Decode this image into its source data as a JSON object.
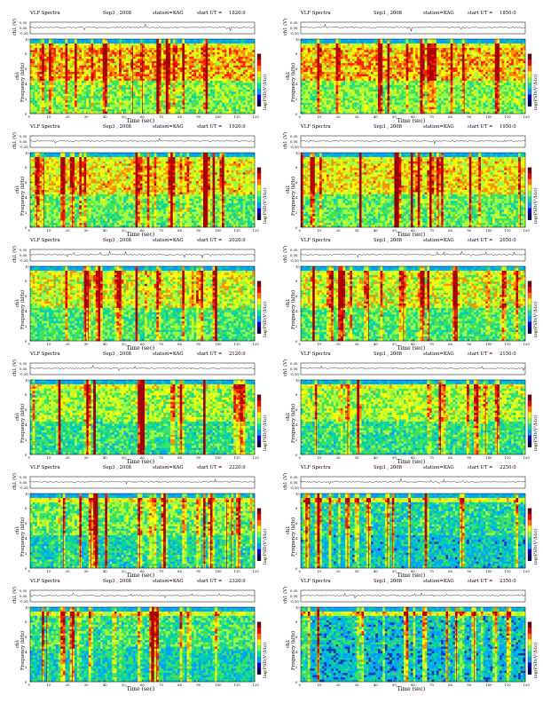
{
  "figure": {
    "labels": {
      "ch1_waveform": "ch1 (V)",
      "channel": "ch1",
      "frequency": "Frequency (kHz)",
      "colorbar": "log(PSD(V²/Hz))",
      "time": "Time (sec)"
    },
    "header_text": {
      "title": "VLF Spectra",
      "date": "Sep3 , 2008",
      "station": "station=KAG",
      "start": "start UT ="
    },
    "colorbar_scale": {
      "colors": [
        "#7a0000",
        "#ff0000",
        "#ff8000",
        "#ffff00",
        "#80ff40",
        "#00e0a0",
        "#00a0ff",
        "#0000c0",
        "#000050"
      ]
    }
  },
  "chart_data": [
    {
      "type": "heatmap",
      "title": "VLF Spectra",
      "date": "Sep3 , 2008",
      "station": "station=KAG",
      "start_ut": "1820:0",
      "ylabel": "Frequency (kHz)",
      "xlabel": "Time (sec)",
      "xlim": [
        0,
        120
      ],
      "ylim": [
        0,
        10
      ],
      "x_ticks": [
        "0",
        "10",
        "20",
        "30",
        "40",
        "50",
        "60",
        "70",
        "80",
        "90",
        "100",
        "110",
        "120"
      ],
      "y_ticks": [
        "0",
        "2",
        "4",
        "6",
        "8",
        "10"
      ],
      "ch1_ticks": [
        "0.30",
        "0.00",
        "-0.30"
      ],
      "colorbar_label": "log(PSD(V²/Hz))"
    },
    {
      "type": "heatmap",
      "title": "VLF Spectra",
      "date": "Sep3 , 2008",
      "station": "station=KAG",
      "start_ut": "1850:0",
      "ylabel": "Frequency (kHz)",
      "xlabel": "Time (sec)",
      "xlim": [
        0,
        120
      ],
      "ylim": [
        0,
        10
      ],
      "x_ticks": [
        "0",
        "10",
        "20",
        "30",
        "40",
        "50",
        "60",
        "70",
        "80",
        "90",
        "100",
        "110",
        "120"
      ],
      "y_ticks": [
        "0",
        "2",
        "4",
        "6",
        "8",
        "10"
      ],
      "ch1_ticks": [
        "0.30",
        "0.00",
        "-0.30"
      ],
      "colorbar_label": "log(PSD(V²/Hz))"
    },
    {
      "type": "heatmap",
      "title": "VLF Spectra",
      "date": "Sep3 , 2008",
      "station": "station=KAG",
      "start_ut": "1920:0",
      "ylabel": "Frequency (kHz)",
      "xlabel": "Time (sec)",
      "xlim": [
        0,
        120
      ],
      "ylim": [
        0,
        10
      ],
      "x_ticks": [
        "0",
        "10",
        "20",
        "30",
        "40",
        "50",
        "60",
        "70",
        "80",
        "90",
        "100",
        "110",
        "120"
      ],
      "y_ticks": [
        "0",
        "2",
        "4",
        "6",
        "8",
        "10"
      ],
      "ch1_ticks": [
        "0.30",
        "0.00",
        "-0.30"
      ],
      "colorbar_label": "log(PSD(V²/Hz))"
    },
    {
      "type": "heatmap",
      "title": "VLF Spectra",
      "date": "Sep3 , 2008",
      "station": "station=KAG",
      "start_ut": "1950:0",
      "ylabel": "Frequency (kHz)",
      "xlabel": "Time (sec)",
      "xlim": [
        0,
        120
      ],
      "ylim": [
        0,
        10
      ],
      "x_ticks": [
        "0",
        "10",
        "20",
        "30",
        "40",
        "50",
        "60",
        "70",
        "80",
        "90",
        "100",
        "110",
        "120"
      ],
      "y_ticks": [
        "0",
        "2",
        "4",
        "6",
        "8",
        "10"
      ],
      "ch1_ticks": [
        "0.30",
        "0.00",
        "-0.30"
      ],
      "colorbar_label": "log(PSD(V²/Hz))"
    },
    {
      "type": "heatmap",
      "title": "VLF Spectra",
      "date": "Sep3 , 2008",
      "station": "station=KAG",
      "start_ut": "2020:0",
      "ylabel": "Frequency (kHz)",
      "xlabel": "Time (sec)",
      "xlim": [
        0,
        120
      ],
      "ylim": [
        0,
        10
      ],
      "x_ticks": [
        "0",
        "10",
        "20",
        "30",
        "40",
        "50",
        "60",
        "70",
        "80",
        "90",
        "100",
        "110",
        "120"
      ],
      "y_ticks": [
        "0",
        "2",
        "4",
        "6",
        "8",
        "10"
      ],
      "ch1_ticks": [
        "0.30",
        "0.00",
        "-0.30"
      ],
      "colorbar_label": "log(PSD(V²/Hz))"
    },
    {
      "type": "heatmap",
      "title": "VLF Spectra",
      "date": "Sep3 , 2008",
      "station": "station=KAG",
      "start_ut": "2050:0",
      "ylabel": "Frequency (kHz)",
      "xlabel": "Time (sec)",
      "xlim": [
        0,
        120
      ],
      "ylim": [
        0,
        10
      ],
      "x_ticks": [
        "0",
        "10",
        "20",
        "30",
        "40",
        "50",
        "60",
        "70",
        "80",
        "90",
        "100",
        "110",
        "120"
      ],
      "y_ticks": [
        "0",
        "2",
        "4",
        "6",
        "8",
        "10"
      ],
      "ch1_ticks": [
        "0.30",
        "0.00",
        "-0.30"
      ],
      "colorbar_label": "log(PSD(V²/Hz))"
    },
    {
      "type": "heatmap",
      "title": "VLF Spectra",
      "date": "Sep3 , 2008",
      "station": "station=KAG",
      "start_ut": "2120:0",
      "ylabel": "Frequency (kHz)",
      "xlabel": "Time (sec)",
      "xlim": [
        0,
        120
      ],
      "ylim": [
        0,
        10
      ],
      "x_ticks": [
        "0",
        "10",
        "20",
        "30",
        "40",
        "50",
        "60",
        "70",
        "80",
        "90",
        "100",
        "110",
        "120"
      ],
      "y_ticks": [
        "0",
        "2",
        "4",
        "6",
        "8",
        "10"
      ],
      "ch1_ticks": [
        "0.30",
        "0.00",
        "-0.30"
      ],
      "colorbar_label": "log(PSD(V²/Hz))"
    },
    {
      "type": "heatmap",
      "title": "VLF Spectra",
      "date": "Sep3 , 2008",
      "station": "station=KAG",
      "start_ut": "2150:0",
      "ylabel": "Frequency (kHz)",
      "xlabel": "Time (sec)",
      "xlim": [
        0,
        120
      ],
      "ylim": [
        0,
        10
      ],
      "x_ticks": [
        "0",
        "10",
        "20",
        "30",
        "40",
        "50",
        "60",
        "70",
        "80",
        "90",
        "100",
        "110",
        "120"
      ],
      "y_ticks": [
        "0",
        "2",
        "4",
        "6",
        "8",
        "10"
      ],
      "ch1_ticks": [
        "0.30",
        "0.00",
        "-0.30"
      ],
      "colorbar_label": "log(PSD(V²/Hz))"
    },
    {
      "type": "heatmap",
      "title": "VLF Spectra",
      "date": "Sep3 , 2008",
      "station": "station=KAG",
      "start_ut": "2220:0",
      "ylabel": "Frequency (kHz)",
      "xlabel": "Time (sec)",
      "xlim": [
        0,
        120
      ],
      "ylim": [
        0,
        10
      ],
      "x_ticks": [
        "0",
        "10",
        "20",
        "30",
        "40",
        "50",
        "60",
        "70",
        "80",
        "90",
        "100",
        "110",
        "120"
      ],
      "y_ticks": [
        "0",
        "2",
        "4",
        "6",
        "8",
        "10"
      ],
      "ch1_ticks": [
        "0.30",
        "0.00",
        "-0.30"
      ],
      "colorbar_label": "log(PSD(V²/Hz))"
    },
    {
      "type": "heatmap",
      "title": "VLF Spectra",
      "date": "Sep3 , 2008",
      "station": "station=KAG",
      "start_ut": "2250:0",
      "ylabel": "Frequency (kHz)",
      "xlabel": "Time (sec)",
      "xlim": [
        0,
        120
      ],
      "ylim": [
        0,
        10
      ],
      "x_ticks": [
        "0",
        "10",
        "20",
        "30",
        "40",
        "50",
        "60",
        "70",
        "80",
        "90",
        "100",
        "110",
        "120"
      ],
      "y_ticks": [
        "0",
        "2",
        "4",
        "6",
        "8",
        "10"
      ],
      "ch1_ticks": [
        "0.30",
        "0.00",
        "-0.30"
      ],
      "colorbar_label": "log(PSD(V²/Hz))"
    },
    {
      "type": "heatmap",
      "title": "VLF Spectra",
      "date": "Sep3 , 2008",
      "station": "station=KAG",
      "start_ut": "2320:0",
      "ylabel": "Frequency (kHz)",
      "xlabel": "Time (sec)",
      "xlim": [
        0,
        120
      ],
      "ylim": [
        0,
        10
      ],
      "x_ticks": [
        "0",
        "10",
        "20",
        "30",
        "40",
        "50",
        "60",
        "70",
        "80",
        "90",
        "100",
        "110",
        "120"
      ],
      "y_ticks": [
        "0",
        "2",
        "4",
        "6",
        "8",
        "10"
      ],
      "ch1_ticks": [
        "0.30",
        "0.00",
        "-0.30"
      ],
      "colorbar_label": "log(PSD(V²/Hz))"
    },
    {
      "type": "heatmap",
      "title": "VLF Spectra",
      "date": "Sep3 , 2008",
      "station": "station=KAG",
      "start_ut": "2350:0",
      "ylabel": "Frequency (kHz)",
      "xlabel": "Time (sec)",
      "xlim": [
        0,
        120
      ],
      "ylim": [
        0,
        10
      ],
      "x_ticks": [
        "0",
        "10",
        "20",
        "30",
        "40",
        "50",
        "60",
        "70",
        "80",
        "90",
        "100",
        "110",
        "120"
      ],
      "y_ticks": [
        "0",
        "2",
        "4",
        "6",
        "8",
        "10"
      ],
      "ch1_ticks": [
        "0.30",
        "0.00",
        "-0.30"
      ],
      "colorbar_label": "log(PSD(V²/Hz))"
    }
  ]
}
